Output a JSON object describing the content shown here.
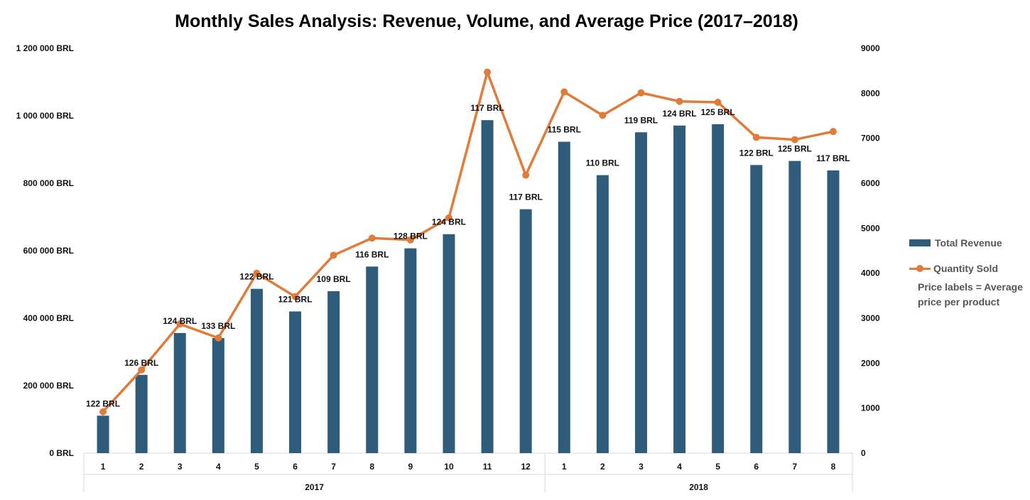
{
  "title": "Monthly Sales Analysis: Revenue, Volume, and Average Price (2017–2018)",
  "colors": {
    "bar": "#2e5c7a",
    "line": "#e07b39",
    "axis": "#d9d9d9"
  },
  "legend": {
    "position": "right",
    "items": [
      {
        "label": "Total Revenue",
        "kind": "bar"
      },
      {
        "label": "Quantity Sold",
        "kind": "line"
      }
    ],
    "note": "Price labels = Average price per product"
  },
  "chart_data": {
    "type": "bar",
    "title": "Monthly Sales Analysis: Revenue, Volume, and Average Price (2017–2018)",
    "categories": [
      "1",
      "2",
      "3",
      "4",
      "5",
      "6",
      "7",
      "8",
      "9",
      "10",
      "11",
      "12",
      "1",
      "2",
      "3",
      "4",
      "5",
      "6",
      "7",
      "8"
    ],
    "groups": [
      {
        "label": "2017",
        "count": 12
      },
      {
        "label": "2018",
        "count": 8
      }
    ],
    "y_left": {
      "ylim": [
        0,
        1200000
      ],
      "ticks": [
        "0 BRL",
        "200 000 BRL",
        "400 000 BRL",
        "600 000 BRL",
        "800 000 BRL",
        "1 000 000 BRL",
        "1 200 000 BRL"
      ]
    },
    "y_right": {
      "ylim": [
        0,
        9000
      ],
      "ticks": [
        "0",
        "1000",
        "2000",
        "3000",
        "4000",
        "5000",
        "6000",
        "7000",
        "8000",
        "9000"
      ]
    },
    "grid": false,
    "series": [
      {
        "name": "Total Revenue",
        "type": "bar",
        "axis": "left",
        "values": [
          111000,
          232000,
          356000,
          341000,
          487000,
          420000,
          480000,
          553000,
          607000,
          649000,
          987000,
          723000,
          923000,
          824000,
          951000,
          971000,
          975000,
          854000,
          866000,
          838000
        ],
        "labels": [
          "122 BRL",
          "126 BRL",
          "124 BRL",
          "133 BRL",
          "122 BRL",
          "121 BRL",
          "109 BRL",
          "116 BRL",
          "128 BRL",
          "124 BRL",
          "117 BRL",
          "117 BRL",
          "115 BRL",
          "110 BRL",
          "119 BRL",
          "124 BRL",
          "125 BRL",
          "122 BRL",
          "125 BRL",
          "117 BRL"
        ]
      },
      {
        "name": "Quantity Sold",
        "type": "line",
        "axis": "right",
        "values": [
          920,
          1850,
          2870,
          2560,
          4000,
          3480,
          4400,
          4780,
          4740,
          5230,
          8470,
          6180,
          8030,
          7510,
          8010,
          7820,
          7800,
          7020,
          6970,
          7150
        ]
      }
    ]
  }
}
